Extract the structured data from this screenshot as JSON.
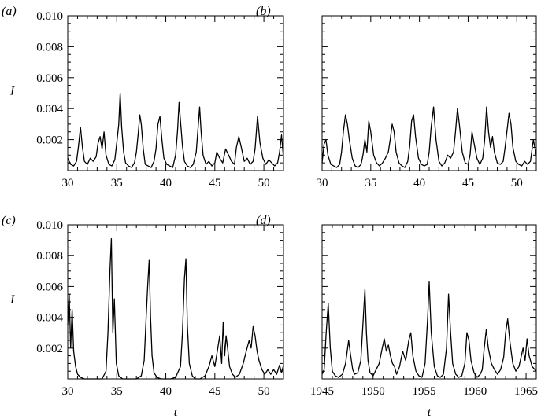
{
  "chart_data": [
    {
      "type": "line",
      "panel_label": "(a)",
      "ylabel": "I",
      "xlabel": "",
      "xlim": [
        30,
        52
      ],
      "ylim": [
        0,
        0.01
      ],
      "xticks": [
        30,
        35,
        40,
        45,
        50
      ],
      "xtick_labels": [
        "30",
        "35",
        "40",
        "45",
        "50"
      ],
      "yticks": [
        0.002,
        0.004,
        0.006,
        0.008,
        0.01
      ],
      "ytick_labels": [
        "0.002",
        "0.004",
        "0.006",
        "0.008",
        "0.010"
      ],
      "series": [
        {
          "x": [
            30.0,
            30.3,
            30.6,
            30.9,
            31.1,
            31.3,
            31.5,
            31.7,
            32.0,
            32.3,
            32.6,
            32.9,
            33.1,
            33.3,
            33.5,
            33.7,
            33.9,
            34.2,
            34.5,
            34.8,
            35.0,
            35.2,
            35.35,
            35.5,
            35.7,
            35.9,
            36.2,
            36.5,
            36.8,
            37.0,
            37.2,
            37.35,
            37.5,
            37.7,
            37.9,
            38.2,
            38.5,
            38.8,
            39.0,
            39.2,
            39.4,
            39.6,
            39.8,
            40.1,
            40.4,
            40.7,
            41.0,
            41.2,
            41.35,
            41.5,
            41.7,
            41.9,
            42.2,
            42.5,
            42.8,
            43.1,
            43.3,
            43.45,
            43.6,
            43.8,
            44.1,
            44.4,
            44.7,
            45.0,
            45.2,
            45.5,
            45.8,
            46.1,
            46.4,
            46.7,
            47.0,
            47.2,
            47.45,
            47.7,
            48.0,
            48.3,
            48.6,
            48.9,
            49.1,
            49.35,
            49.6,
            49.9,
            50.2,
            50.5,
            50.8,
            51.1,
            51.4,
            51.6,
            51.8,
            52.0
          ],
          "y": [
            0.0008,
            0.0004,
            0.0003,
            0.0006,
            0.0016,
            0.0028,
            0.0015,
            0.0006,
            0.0004,
            0.0008,
            0.0006,
            0.0009,
            0.0018,
            0.0022,
            0.0014,
            0.0025,
            0.001,
            0.0004,
            0.0003,
            0.0007,
            0.0018,
            0.003,
            0.005,
            0.0028,
            0.0012,
            0.0005,
            0.0003,
            0.0002,
            0.0005,
            0.0012,
            0.0025,
            0.0036,
            0.003,
            0.0014,
            0.0004,
            0.0003,
            0.0002,
            0.0006,
            0.0014,
            0.003,
            0.0035,
            0.002,
            0.0008,
            0.0004,
            0.0003,
            0.0002,
            0.001,
            0.0026,
            0.0044,
            0.0032,
            0.0016,
            0.0006,
            0.0003,
            0.0002,
            0.0004,
            0.0012,
            0.0028,
            0.0041,
            0.0025,
            0.001,
            0.0004,
            0.0006,
            0.0003,
            0.0005,
            0.0012,
            0.0008,
            0.0005,
            0.0014,
            0.001,
            0.0006,
            0.0004,
            0.0015,
            0.0022,
            0.0015,
            0.0006,
            0.0008,
            0.0004,
            0.0006,
            0.0014,
            0.0035,
            0.0018,
            0.0008,
            0.0004,
            0.0007,
            0.0005,
            0.0003,
            0.0005,
            0.0012,
            0.0023,
            0.0008
          ]
        }
      ]
    },
    {
      "type": "line",
      "panel_label": "(b)",
      "ylabel": "",
      "xlabel": "",
      "xlim": [
        30,
        52
      ],
      "ylim": [
        0,
        0.01
      ],
      "xticks": [
        30,
        35,
        40,
        45,
        50
      ],
      "xtick_labels": [
        "30",
        "35",
        "40",
        "45",
        "50"
      ],
      "yticks": [
        0.002,
        0.004,
        0.006,
        0.008,
        0.01
      ],
      "series": [
        {
          "x": [
            30.0,
            30.2,
            30.4,
            30.6,
            30.9,
            31.2,
            31.5,
            31.8,
            32.0,
            32.2,
            32.4,
            32.6,
            32.8,
            33.1,
            33.4,
            33.7,
            34.0,
            34.2,
            34.4,
            34.6,
            34.8,
            35.0,
            35.3,
            35.6,
            35.9,
            36.2,
            36.5,
            36.8,
            37.0,
            37.2,
            37.4,
            37.6,
            37.9,
            38.2,
            38.5,
            38.8,
            39.0,
            39.2,
            39.4,
            39.6,
            39.9,
            40.2,
            40.5,
            40.8,
            41.0,
            41.2,
            41.45,
            41.7,
            42.0,
            42.3,
            42.6,
            42.9,
            43.2,
            43.5,
            43.7,
            43.9,
            44.1,
            44.4,
            44.7,
            45.0,
            45.2,
            45.4,
            45.6,
            45.9,
            46.2,
            46.5,
            46.7,
            46.9,
            47.1,
            47.3,
            47.5,
            47.7,
            48.0,
            48.3,
            48.6,
            48.8,
            49.0,
            49.2,
            49.4,
            49.6,
            49.9,
            50.2,
            50.5,
            50.8,
            51.1,
            51.4,
            51.7,
            52.0
          ],
          "y": [
            0.0005,
            0.0017,
            0.002,
            0.001,
            0.0004,
            0.0003,
            0.0002,
            0.0004,
            0.0012,
            0.0026,
            0.0036,
            0.003,
            0.002,
            0.0008,
            0.0003,
            0.0002,
            0.0004,
            0.001,
            0.002,
            0.0012,
            0.0032,
            0.0025,
            0.001,
            0.0005,
            0.0003,
            0.0005,
            0.0008,
            0.0012,
            0.002,
            0.003,
            0.0025,
            0.0012,
            0.0005,
            0.0003,
            0.0002,
            0.0006,
            0.0016,
            0.0032,
            0.0036,
            0.0022,
            0.0008,
            0.0004,
            0.0003,
            0.0004,
            0.0012,
            0.0028,
            0.0041,
            0.002,
            0.0006,
            0.0003,
            0.0005,
            0.001,
            0.0008,
            0.0012,
            0.0025,
            0.004,
            0.003,
            0.0012,
            0.0005,
            0.0004,
            0.001,
            0.0025,
            0.0018,
            0.0008,
            0.0004,
            0.0008,
            0.002,
            0.0041,
            0.0025,
            0.0015,
            0.0022,
            0.0012,
            0.0005,
            0.0004,
            0.0006,
            0.0015,
            0.0026,
            0.0037,
            0.003,
            0.0015,
            0.0006,
            0.0004,
            0.0003,
            0.0006,
            0.0004,
            0.0006,
            0.002,
            0.001
          ]
        }
      ]
    },
    {
      "type": "line",
      "panel_label": "(c)",
      "ylabel": "I",
      "xlabel": "t",
      "xlim": [
        30,
        52
      ],
      "ylim": [
        0,
        0.01
      ],
      "xticks": [
        30,
        35,
        40,
        45,
        50
      ],
      "xtick_labels": [
        "30",
        "35",
        "40",
        "45",
        "50"
      ],
      "yticks": [
        0.002,
        0.004,
        0.006,
        0.008,
        0.01
      ],
      "ytick_labels": [
        "0.002",
        "0.004",
        "0.006",
        "0.008",
        "0.010"
      ],
      "series": [
        {
          "x": [
            30.0,
            30.15,
            30.3,
            30.45,
            30.6,
            30.8,
            31.0,
            31.3,
            31.7,
            32.1,
            32.5,
            33.0,
            33.5,
            33.9,
            34.1,
            34.3,
            34.45,
            34.6,
            34.75,
            34.95,
            35.2,
            35.6,
            36.0,
            36.5,
            37.0,
            37.5,
            37.8,
            38.0,
            38.15,
            38.3,
            38.45,
            38.6,
            38.8,
            39.1,
            39.5,
            40.0,
            40.5,
            41.0,
            41.5,
            41.7,
            41.9,
            42.05,
            42.2,
            42.4,
            42.7,
            43.0,
            43.5,
            44.0,
            44.4,
            44.7,
            45.0,
            45.3,
            45.5,
            45.7,
            45.85,
            46.0,
            46.15,
            46.3,
            46.5,
            46.8,
            47.1,
            47.5,
            47.9,
            48.2,
            48.5,
            48.7,
            48.9,
            49.1,
            49.3,
            49.5,
            49.8,
            50.1,
            50.4,
            50.7,
            51.0,
            51.3,
            51.6,
            51.8,
            52.0
          ],
          "y": [
            0.0035,
            0.0055,
            0.002,
            0.0045,
            0.0018,
            0.0008,
            0.0003,
            0.0001,
            0.0,
            0.0,
            0.0,
            0.0,
            0.0,
            0.0005,
            0.003,
            0.007,
            0.0091,
            0.003,
            0.0052,
            0.001,
            0.0002,
            0.0,
            0.0,
            0.0,
            0.0,
            0.0002,
            0.0012,
            0.004,
            0.006,
            0.0077,
            0.004,
            0.0015,
            0.0004,
            0.0001,
            0.0,
            0.0,
            0.0,
            0.0001,
            0.0008,
            0.003,
            0.0065,
            0.0078,
            0.0035,
            0.001,
            0.0002,
            0.0,
            0.0,
            0.0002,
            0.0008,
            0.0015,
            0.0008,
            0.002,
            0.0028,
            0.001,
            0.0037,
            0.0015,
            0.0028,
            0.002,
            0.0008,
            0.0003,
            0.0001,
            0.0003,
            0.001,
            0.0018,
            0.0025,
            0.002,
            0.0034,
            0.0028,
            0.0018,
            0.0012,
            0.0006,
            0.0003,
            0.0006,
            0.0003,
            0.0006,
            0.0003,
            0.0009,
            0.0004,
            0.0009
          ]
        }
      ]
    },
    {
      "type": "line",
      "panel_label": "(d)",
      "ylabel": "",
      "xlabel": "t",
      "xlim": [
        1945,
        1966
      ],
      "ylim": [
        0,
        0.01
      ],
      "xticks": [
        1945,
        1950,
        1955,
        1960,
        1965
      ],
      "xtick_labels": [
        "1945",
        "1950",
        "1955",
        "1960",
        "1965"
      ],
      "yticks": [
        0.002,
        0.004,
        0.006,
        0.008,
        0.01
      ],
      "series": [
        {
          "x": [
            1945.0,
            1945.2,
            1945.4,
            1945.6,
            1945.8,
            1946.0,
            1946.3,
            1946.6,
            1947.0,
            1947.3,
            1947.6,
            1947.8,
            1948.0,
            1948.2,
            1948.5,
            1948.8,
            1949.0,
            1949.2,
            1949.35,
            1949.5,
            1949.7,
            1950.0,
            1950.3,
            1950.6,
            1950.9,
            1951.1,
            1951.3,
            1951.5,
            1951.7,
            1951.9,
            1952.1,
            1952.3,
            1952.6,
            1952.9,
            1953.2,
            1953.5,
            1953.7,
            1953.9,
            1954.2,
            1954.5,
            1954.8,
            1955.1,
            1955.35,
            1955.5,
            1955.7,
            1956.0,
            1956.3,
            1956.6,
            1956.9,
            1957.2,
            1957.4,
            1957.6,
            1957.8,
            1958.1,
            1958.4,
            1958.7,
            1959.0,
            1959.2,
            1959.4,
            1959.6,
            1959.9,
            1960.2,
            1960.5,
            1960.7,
            1960.9,
            1961.1,
            1961.3,
            1961.6,
            1961.9,
            1962.2,
            1962.5,
            1962.8,
            1963.0,
            1963.2,
            1963.4,
            1963.7,
            1964.0,
            1964.3,
            1964.5,
            1964.7,
            1964.9,
            1965.1,
            1965.3,
            1965.6,
            1966.0
          ],
          "y": [
            0.0003,
            0.0006,
            0.003,
            0.0049,
            0.002,
            0.0005,
            0.0002,
            0.0001,
            0.0003,
            0.001,
            0.0025,
            0.0015,
            0.0006,
            0.0003,
            0.0004,
            0.0012,
            0.0035,
            0.0058,
            0.003,
            0.0012,
            0.0004,
            0.0002,
            0.0006,
            0.001,
            0.002,
            0.0026,
            0.0018,
            0.0022,
            0.0015,
            0.001,
            0.0008,
            0.0003,
            0.0008,
            0.0018,
            0.0012,
            0.0025,
            0.003,
            0.0015,
            0.0005,
            0.0002,
            0.0001,
            0.001,
            0.004,
            0.0063,
            0.003,
            0.0008,
            0.0002,
            0.0001,
            0.0003,
            0.002,
            0.0055,
            0.003,
            0.001,
            0.0003,
            0.0001,
            0.0002,
            0.001,
            0.003,
            0.0025,
            0.0012,
            0.0004,
            0.0001,
            0.0003,
            0.0006,
            0.002,
            0.0032,
            0.002,
            0.001,
            0.0006,
            0.0003,
            0.0006,
            0.0014,
            0.003,
            0.0039,
            0.0025,
            0.001,
            0.0005,
            0.0008,
            0.0014,
            0.002,
            0.0012,
            0.0026,
            0.0015,
            0.0008,
            0.0005
          ]
        }
      ]
    }
  ]
}
